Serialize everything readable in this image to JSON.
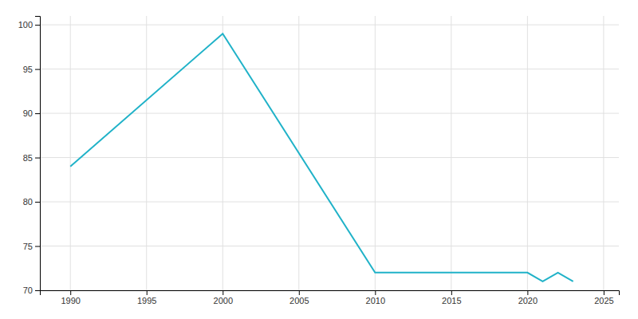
{
  "chart_data": {
    "type": "line",
    "x": [
      1990,
      2000,
      2010,
      2020,
      2021,
      2022,
      2023
    ],
    "values": [
      84,
      99,
      72,
      72,
      71,
      72,
      71
    ],
    "color": "#20b2c8",
    "xlim": [
      1988,
      2026
    ],
    "ylim": [
      70,
      101
    ],
    "xticks": [
      1990,
      1995,
      2000,
      2005,
      2010,
      2015,
      2020,
      2025
    ],
    "yticks": [
      70,
      75,
      80,
      85,
      90,
      95,
      100
    ],
    "grid": true
  }
}
